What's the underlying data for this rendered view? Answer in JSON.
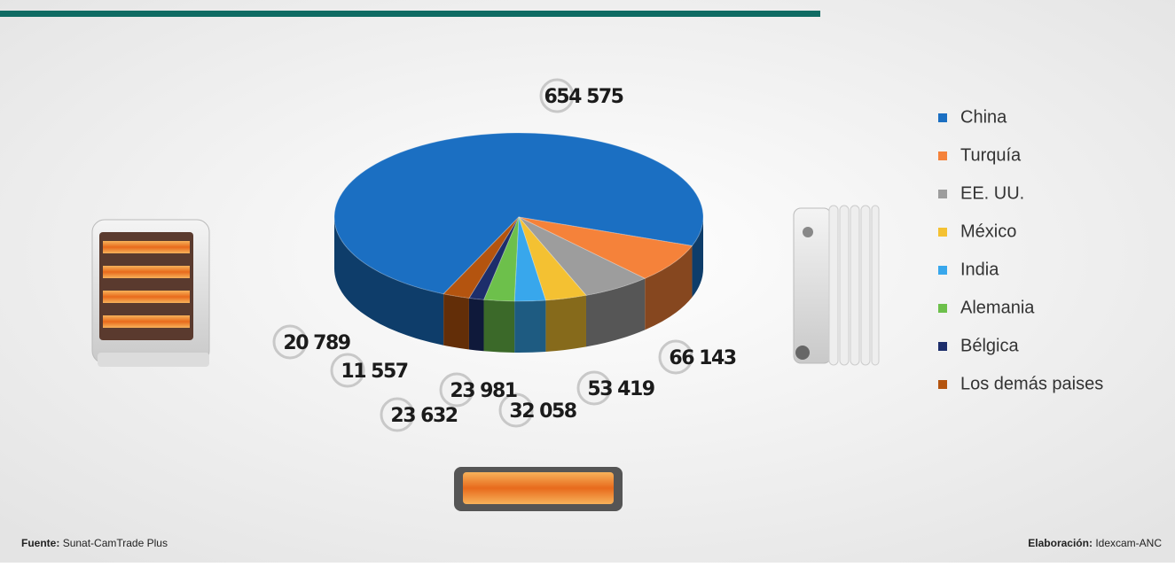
{
  "chart_data": {
    "type": "pie",
    "categories": [
      "China",
      "Turquía",
      "EE. UU.",
      "México",
      "India",
      "Alemania",
      "Bélgica",
      "Los demás paises"
    ],
    "values": [
      654575,
      66143,
      53419,
      32058,
      23981,
      23632,
      11557,
      20789
    ],
    "value_labels": [
      "654 575",
      "66 143",
      "53 419",
      "32 058",
      "23 981",
      "23 632",
      "11 557",
      "20 789"
    ],
    "colors": [
      "#1b6fc2",
      "#f5823a",
      "#9d9d9d",
      "#f4c132",
      "#38a7ec",
      "#6dc04b",
      "#1d2e6b",
      "#b4540f"
    ],
    "legend": "right",
    "source_label": "Fuente:",
    "source": "Sunat-CamTrade Plus",
    "credit_label": "Elaboración:",
    "credit": "Idexcam-ANC"
  }
}
